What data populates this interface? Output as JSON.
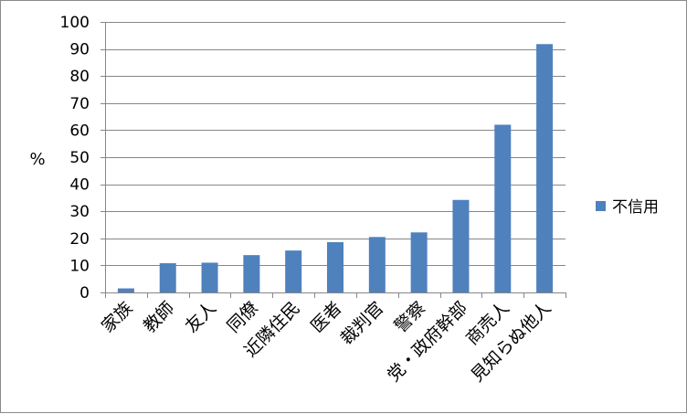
{
  "chart_data": {
    "type": "bar",
    "categories": [
      "家族",
      "教師",
      "友人",
      "同僚",
      "近隣住民",
      "医者",
      "裁判官",
      "警察",
      "党・政府幹部",
      "商売人",
      "見知らぬ他人"
    ],
    "series": [
      {
        "name": "不信用",
        "values": [
          1.5,
          10.8,
          11.0,
          13.8,
          15.5,
          18.6,
          20.5,
          22.2,
          34.2,
          62.0,
          91.8
        ]
      }
    ],
    "ylabel": "%",
    "xlabel": "",
    "ylim": [
      0,
      100
    ],
    "yticks": [
      0,
      10,
      20,
      30,
      40,
      50,
      60,
      70,
      80,
      90,
      100
    ],
    "grid": true,
    "legend": "right",
    "bar_color": "#4f81bd",
    "grid_color": "#878787"
  }
}
